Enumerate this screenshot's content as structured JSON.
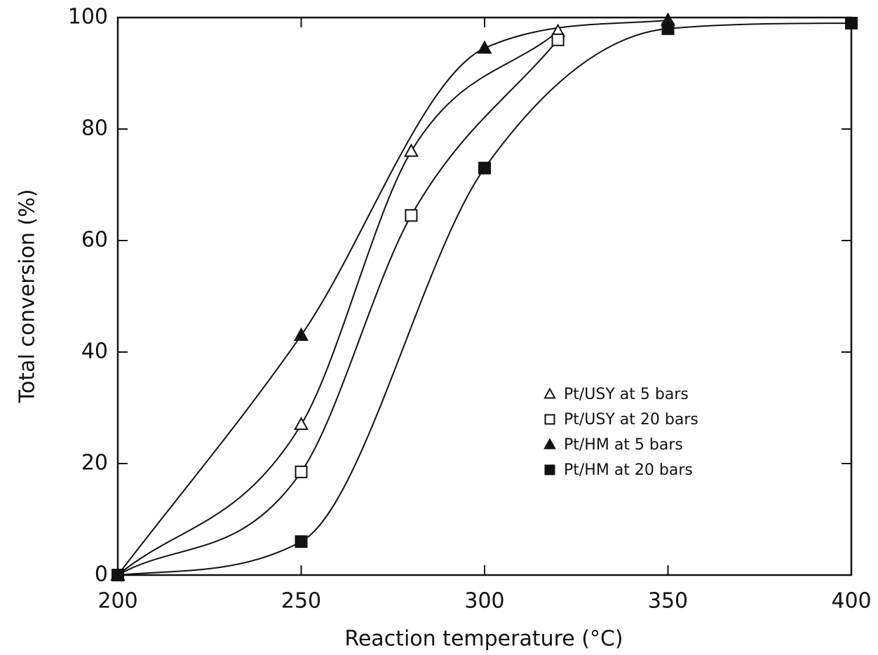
{
  "chart_data": {
    "type": "line",
    "smooth": true,
    "x_label": "Reaction temperature (°C)",
    "y_label": "Total conversion (%)",
    "xlim": [
      200,
      400
    ],
    "xticks": [
      200,
      250,
      300,
      350,
      400
    ],
    "ylim": [
      0,
      100
    ],
    "yticks": [
      0,
      20,
      40,
      60,
      80,
      100
    ],
    "legend": "lower right",
    "series": [
      {
        "name": "Pt/USY at 5 bars",
        "color": "#111111",
        "marker": "triangle",
        "filled": false,
        "x": [
          200,
          250,
          280,
          320
        ],
        "values": [
          0,
          27,
          76,
          97.5
        ]
      },
      {
        "name": "Pt/USY at 20 bars",
        "color": "#111111",
        "marker": "square",
        "filled": false,
        "x": [
          200,
          250,
          280,
          320
        ],
        "values": [
          0,
          18.5,
          64.5,
          96
        ]
      },
      {
        "name": "Pt/HM at 5 bars",
        "color": "#111111",
        "marker": "triangle",
        "filled": true,
        "x": [
          200,
          250,
          300,
          350
        ],
        "values": [
          0,
          43,
          94.5,
          99.5
        ]
      },
      {
        "name": "Pt/HM at 20 bars",
        "color": "#111111",
        "marker": "square",
        "filled": true,
        "x": [
          200,
          250,
          300,
          350,
          400
        ],
        "values": [
          0,
          6,
          73,
          98,
          99
        ]
      }
    ]
  }
}
